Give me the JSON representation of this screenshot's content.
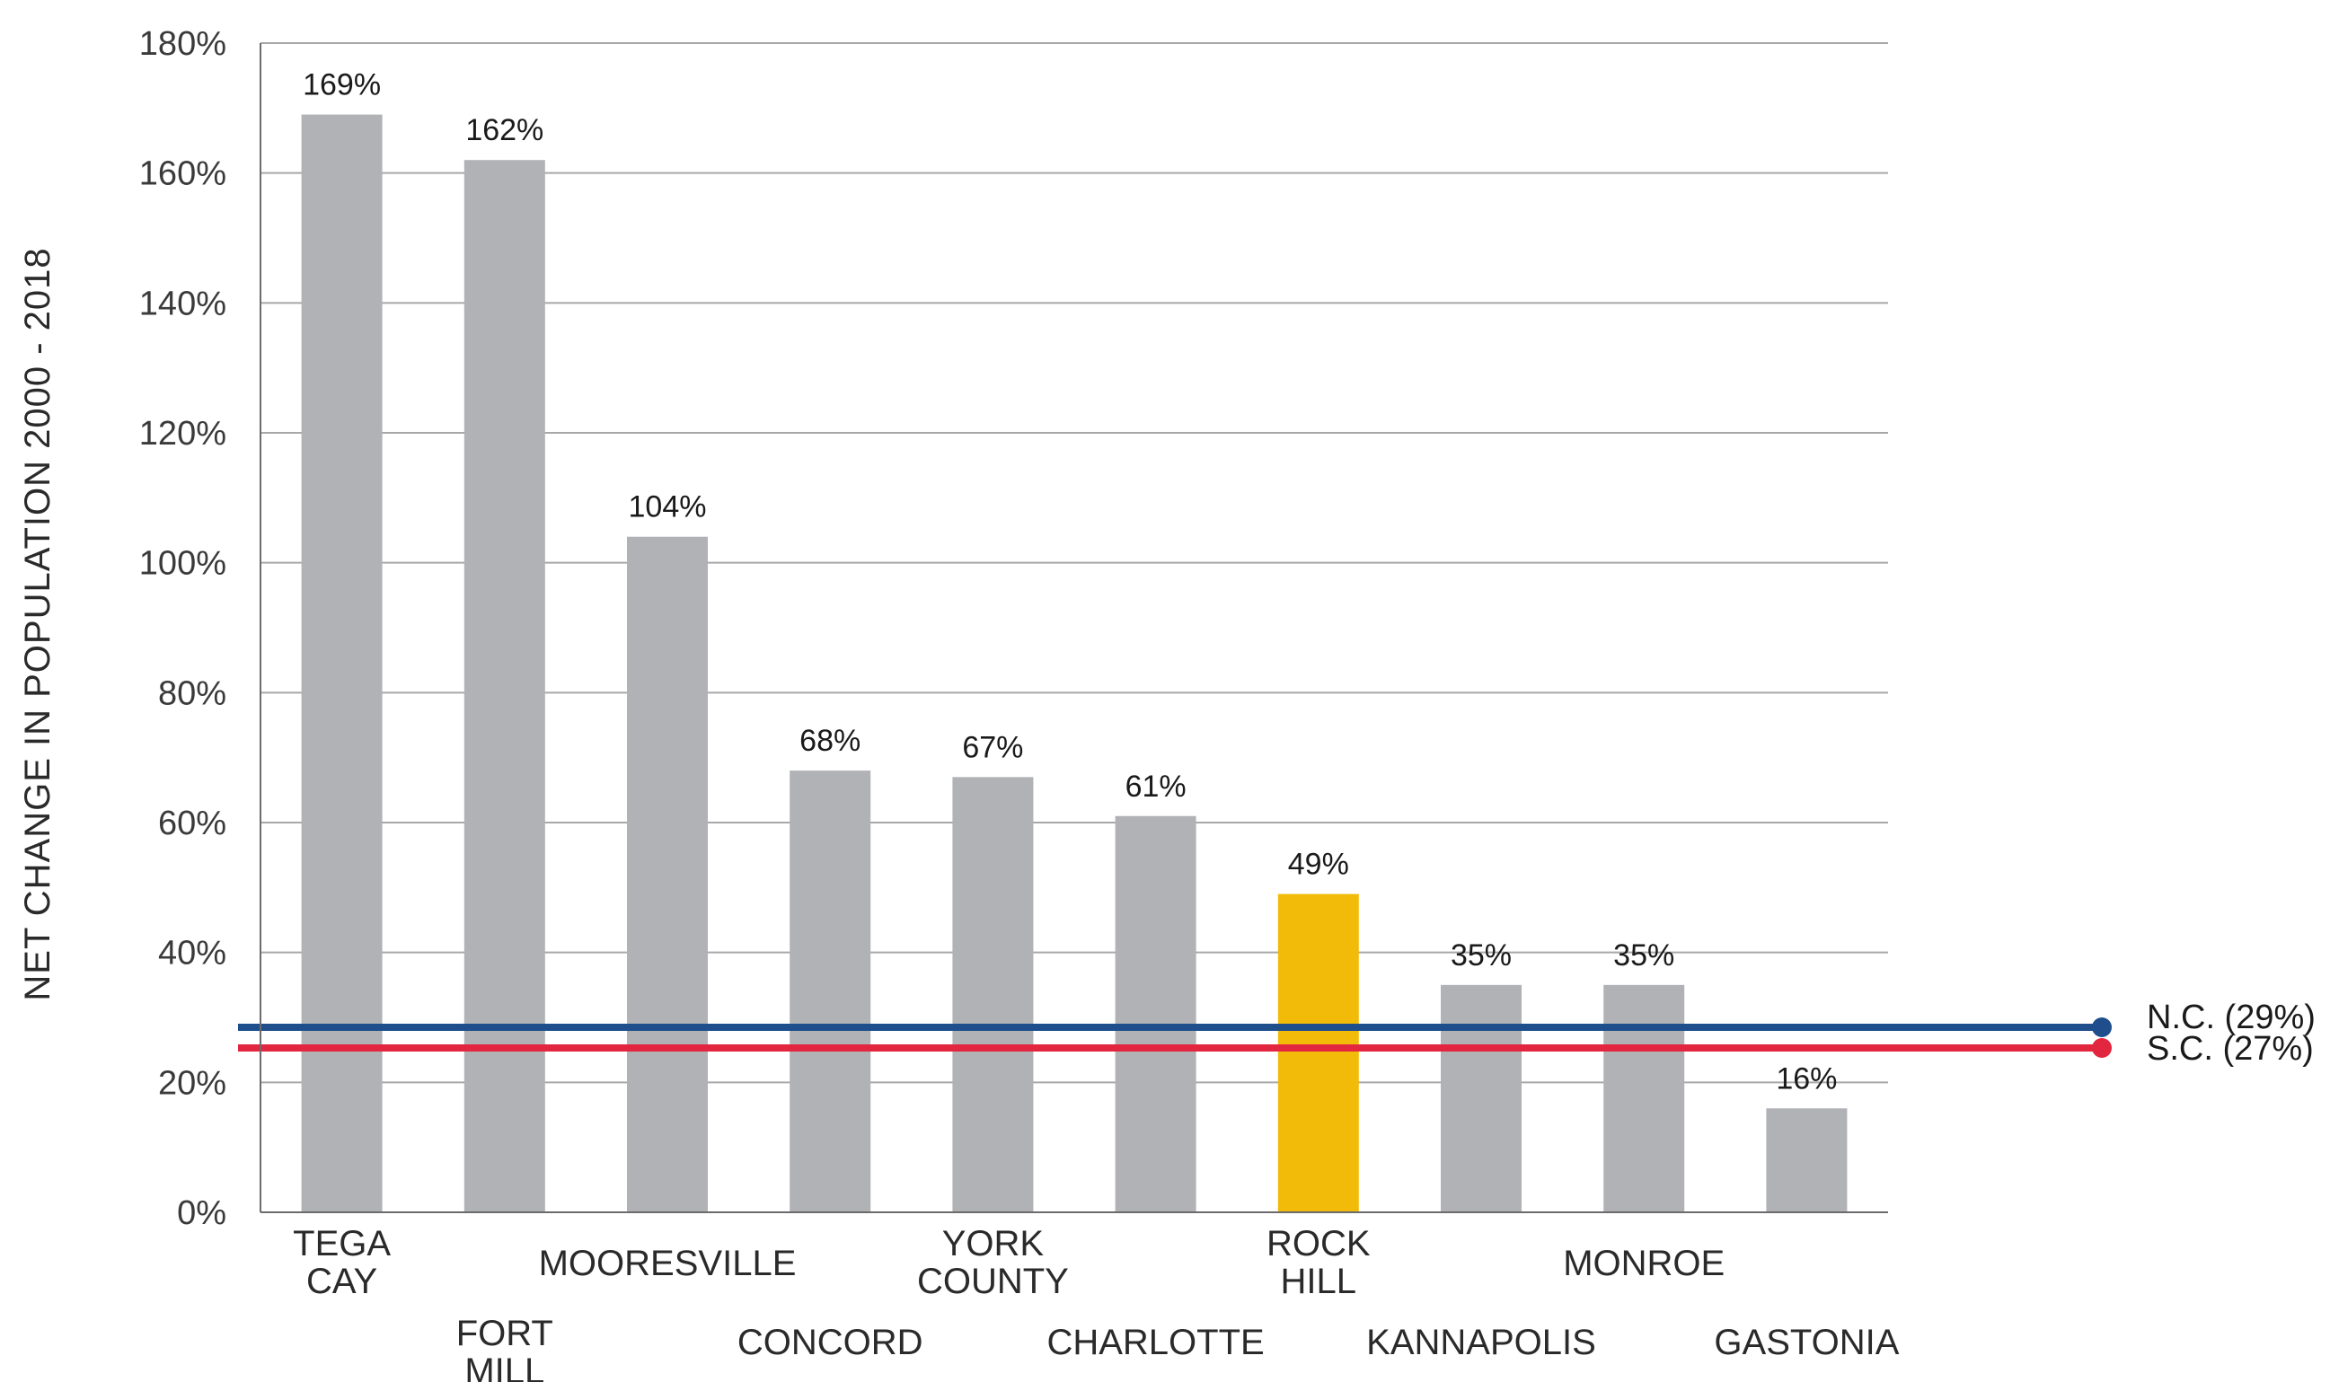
{
  "chart_data": {
    "type": "bar",
    "title": "",
    "xlabel": "",
    "ylabel": "NET CHANGE IN POPULATION 2000 - 2018",
    "ylim": [
      0,
      180
    ],
    "yticks": [
      "0%",
      "20%",
      "40%",
      "60%",
      "80%",
      "100%",
      "120%",
      "140%",
      "160%",
      "180%"
    ],
    "grid": true,
    "bars": [
      {
        "label": [
          "TEGA",
          "CAY"
        ],
        "value": 169,
        "value_label": "169%",
        "label_row": "upper",
        "highlight": false
      },
      {
        "label": [
          "FORT",
          "MILL"
        ],
        "value": 162,
        "value_label": "162%",
        "label_row": "lower",
        "highlight": false
      },
      {
        "label": [
          "MOORESVILLE"
        ],
        "value": 104,
        "value_label": "104%",
        "label_row": "upper",
        "highlight": false
      },
      {
        "label": [
          "CONCORD"
        ],
        "value": 68,
        "value_label": "68%",
        "label_row": "lower",
        "highlight": false
      },
      {
        "label": [
          "YORK",
          "COUNTY"
        ],
        "value": 67,
        "value_label": "67%",
        "label_row": "upper",
        "highlight": false
      },
      {
        "label": [
          "CHARLOTTE"
        ],
        "value": 61,
        "value_label": "61%",
        "label_row": "lower",
        "highlight": false
      },
      {
        "label": [
          "ROCK",
          "HILL"
        ],
        "value": 49,
        "value_label": "49%",
        "label_row": "upper",
        "highlight": true
      },
      {
        "label": [
          "KANNAPOLIS"
        ],
        "value": 35,
        "value_label": "35%",
        "label_row": "lower",
        "highlight": false
      },
      {
        "label": [
          "MONROE"
        ],
        "value": 35,
        "value_label": "35%",
        "label_row": "upper",
        "highlight": false
      },
      {
        "label": [
          "GASTONIA"
        ],
        "value": 16,
        "value_label": "16%",
        "label_row": "lower",
        "highlight": false
      }
    ],
    "reference_lines": [
      {
        "name": "N.C. (29%)",
        "value": 29,
        "color": "#1f4e8c"
      },
      {
        "name": "S.C. (27%)",
        "value": 27,
        "color": "#e3263f"
      }
    ],
    "colors": {
      "bar": "#b1b2b5",
      "highlight": "#f3bb09",
      "grid": "#a8a8a8",
      "axis": "#6b6b6b"
    }
  }
}
